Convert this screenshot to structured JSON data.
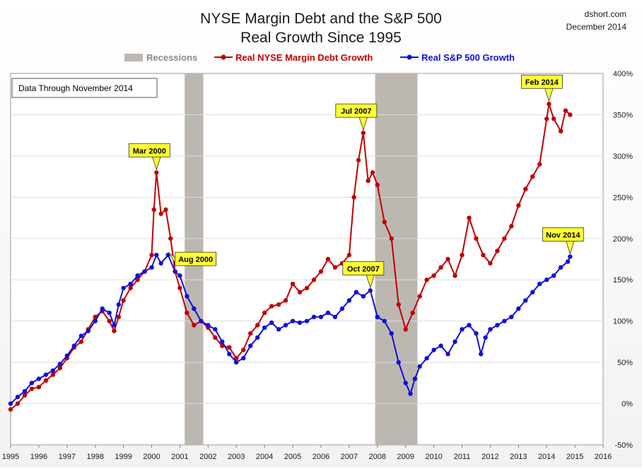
{
  "header": {
    "title_line1": "NYSE Margin Debt and the S&P 500",
    "title_line2": "Real Growth Since 1995",
    "source": "dshort.com",
    "date": "December 2014"
  },
  "note": "Data Through November 2014",
  "legend": {
    "recessions": "Recessions",
    "margin": "Real NYSE Margin Debt Growth",
    "sp500": "Real S&P 500 Growth"
  },
  "colors": {
    "margin": "#c00000",
    "sp500": "#1010d8",
    "recession": "#bdb7b2",
    "callout": "#ffff33"
  },
  "annotations": [
    {
      "label": "Mar 2000",
      "series": "margin",
      "x": 2000.17,
      "y": 280
    },
    {
      "label": "Aug 2000",
      "series": "sp500",
      "x": 2000.58,
      "y": 180
    },
    {
      "label": "Jul 2007",
      "series": "margin",
      "x": 2007.5,
      "y": 328
    },
    {
      "label": "Oct 2007",
      "series": "sp500",
      "x": 2007.75,
      "y": 137
    },
    {
      "label": "Feb 2014",
      "series": "margin",
      "x": 2014.08,
      "y": 363
    },
    {
      "label": "Nov 2014",
      "series": "sp500",
      "x": 2014.83,
      "y": 178
    }
  ],
  "chart_data": {
    "type": "line",
    "x_ticks": [
      "1995",
      "1996",
      "1997",
      "1998",
      "1999",
      "2000",
      "2001",
      "2002",
      "2003",
      "2004",
      "2005",
      "2006",
      "2007",
      "2008",
      "2009",
      "2010",
      "2011",
      "2012",
      "2013",
      "2014",
      "2015",
      "2016"
    ],
    "y_ticks": [
      "400%",
      "350%",
      "300%",
      "250%",
      "200%",
      "150%",
      "100%",
      "50%",
      "0%",
      "-50%"
    ],
    "xlim": [
      1995,
      2016
    ],
    "ylim": [
      -50,
      400
    ],
    "recessions": [
      [
        2001.17,
        2001.83
      ],
      [
        2007.92,
        2009.42
      ]
    ],
    "series": [
      {
        "name": "Real NYSE Margin Debt Growth",
        "key": "margin",
        "x": [
          1995.0,
          1995.25,
          1995.5,
          1995.75,
          1996.0,
          1996.25,
          1996.5,
          1996.75,
          1997.0,
          1997.25,
          1997.5,
          1997.75,
          1998.0,
          1998.25,
          1998.5,
          1998.67,
          1998.83,
          1999.0,
          1999.25,
          1999.5,
          1999.75,
          2000.0,
          2000.08,
          2000.17,
          2000.33,
          2000.5,
          2000.67,
          2000.83,
          2001.0,
          2001.25,
          2001.5,
          2001.75,
          2002.0,
          2002.25,
          2002.5,
          2002.75,
          2003.0,
          2003.25,
          2003.5,
          2003.75,
          2004.0,
          2004.25,
          2004.5,
          2004.75,
          2005.0,
          2005.25,
          2005.5,
          2005.75,
          2006.0,
          2006.25,
          2006.5,
          2006.75,
          2007.0,
          2007.17,
          2007.33,
          2007.5,
          2007.67,
          2007.83,
          2008.0,
          2008.25,
          2008.5,
          2008.75,
          2009.0,
          2009.25,
          2009.5,
          2009.75,
          2010.0,
          2010.25,
          2010.5,
          2010.75,
          2011.0,
          2011.25,
          2011.5,
          2011.75,
          2012.0,
          2012.25,
          2012.5,
          2012.75,
          2013.0,
          2013.25,
          2013.5,
          2013.75,
          2014.0,
          2014.08,
          2014.25,
          2014.5,
          2014.67,
          2014.83
        ],
        "values": [
          -7,
          0,
          10,
          18,
          20,
          28,
          35,
          43,
          55,
          68,
          75,
          90,
          105,
          112,
          100,
          88,
          105,
          125,
          140,
          150,
          160,
          180,
          235,
          280,
          230,
          235,
          200,
          160,
          140,
          110,
          95,
          100,
          92,
          80,
          70,
          68,
          55,
          65,
          85,
          95,
          110,
          118,
          120,
          125,
          145,
          135,
          140,
          150,
          160,
          175,
          165,
          170,
          180,
          250,
          295,
          328,
          270,
          280,
          265,
          220,
          200,
          120,
          90,
          110,
          130,
          150,
          155,
          165,
          175,
          155,
          180,
          225,
          200,
          180,
          170,
          185,
          200,
          215,
          240,
          260,
          275,
          290,
          345,
          363,
          345,
          330,
          355,
          350
        ]
      },
      {
        "name": "Real S&P 500 Growth",
        "key": "sp500",
        "x": [
          1995.0,
          1995.25,
          1995.5,
          1995.75,
          1996.0,
          1996.25,
          1996.5,
          1996.75,
          1997.0,
          1997.25,
          1997.5,
          1997.75,
          1998.0,
          1998.25,
          1998.5,
          1998.67,
          1998.83,
          1999.0,
          1999.25,
          1999.5,
          1999.75,
          2000.0,
          2000.17,
          2000.33,
          2000.58,
          2000.83,
          2001.0,
          2001.25,
          2001.5,
          2001.75,
          2002.0,
          2002.25,
          2002.5,
          2002.75,
          2003.0,
          2003.25,
          2003.5,
          2003.75,
          2004.0,
          2004.25,
          2004.5,
          2004.75,
          2005.0,
          2005.25,
          2005.5,
          2005.75,
          2006.0,
          2006.25,
          2006.5,
          2006.75,
          2007.0,
          2007.25,
          2007.5,
          2007.75,
          2008.0,
          2008.25,
          2008.5,
          2008.75,
          2009.0,
          2009.17,
          2009.33,
          2009.5,
          2009.75,
          2010.0,
          2010.25,
          2010.5,
          2010.75,
          2011.0,
          2011.25,
          2011.5,
          2011.67,
          2011.83,
          2012.0,
          2012.25,
          2012.5,
          2012.75,
          2013.0,
          2013.25,
          2013.5,
          2013.75,
          2014.0,
          2014.25,
          2014.5,
          2014.75,
          2014.83
        ],
        "values": [
          0,
          8,
          15,
          25,
          30,
          35,
          40,
          48,
          58,
          70,
          82,
          88,
          100,
          115,
          110,
          95,
          120,
          140,
          145,
          155,
          160,
          165,
          180,
          170,
          180,
          160,
          155,
          130,
          115,
          100,
          95,
          90,
          75,
          60,
          50,
          55,
          70,
          80,
          92,
          98,
          90,
          95,
          100,
          98,
          100,
          105,
          105,
          110,
          105,
          115,
          125,
          135,
          130,
          137,
          105,
          100,
          85,
          50,
          25,
          12,
          30,
          45,
          55,
          65,
          70,
          60,
          75,
          90,
          95,
          85,
          60,
          80,
          90,
          95,
          100,
          105,
          115,
          125,
          135,
          145,
          150,
          155,
          165,
          172,
          178
        ]
      }
    ]
  }
}
